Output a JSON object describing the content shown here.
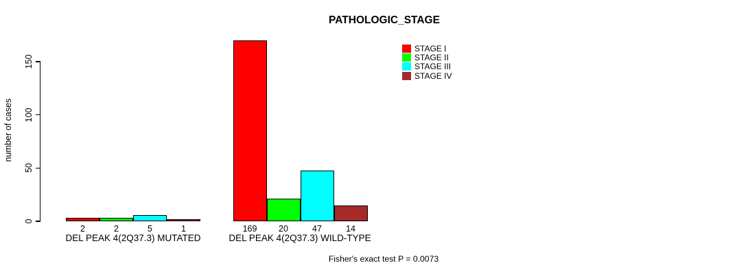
{
  "title": "PATHOLOGIC_STAGE",
  "ylabel": "number of cases",
  "footer": "Fisher's exact test P = 0.0073",
  "colors": {
    "stage_i": "#FF0000",
    "stage_ii": "#00FF00",
    "stage_iii": "#00FFFF",
    "stage_iv": "#A52A2A",
    "axis": "#000000",
    "background": "#FFFFFF"
  },
  "chart_data": {
    "type": "bar",
    "title": "PATHOLOGIC_STAGE",
    "xlabel": "",
    "ylabel": "number of cases",
    "categories": [
      "DEL PEAK 4(2Q37.3) MUTATED",
      "DEL PEAK 4(2Q37.3) WILD-TYPE"
    ],
    "series": [
      {
        "name": "STAGE I",
        "color": "#FF0000",
        "values": [
          2,
          169
        ]
      },
      {
        "name": "STAGE II",
        "color": "#00FF00",
        "values": [
          2,
          20
        ]
      },
      {
        "name": "STAGE III",
        "color": "#00FFFF",
        "values": [
          5,
          47
        ]
      },
      {
        "name": "STAGE IV",
        "color": "#A52A2A",
        "values": [
          1,
          14
        ]
      }
    ],
    "bar_value_labels": {
      "DEL PEAK 4(2Q37.3) MUTATED": [
        2,
        2,
        5,
        1
      ],
      "DEL PEAK 4(2Q37.3) WILD-TYPE": [
        169,
        20,
        47,
        14
      ]
    },
    "yticks": [
      0,
      50,
      100,
      150
    ],
    "ylim": [
      0,
      175
    ],
    "grid": false,
    "legend_position": "top-right",
    "annotation": "Fisher's exact test P = 0.0073"
  }
}
